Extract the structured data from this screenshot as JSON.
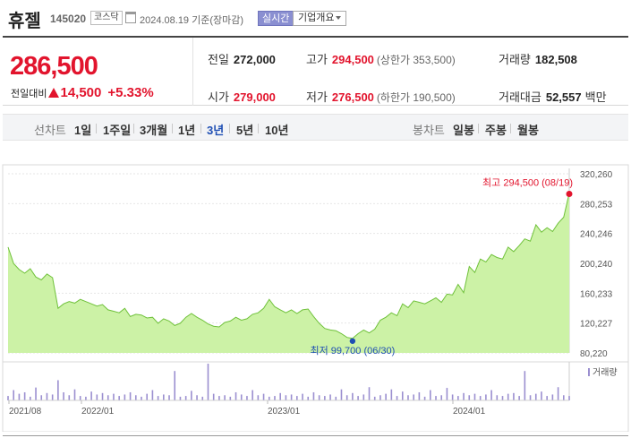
{
  "header": {
    "name": "휴젤",
    "code": "145020",
    "market": "코스닥",
    "date": "2024.08.19",
    "date_note": "기준(장마감)",
    "live_label": "실시간",
    "info_label": "기업개요"
  },
  "quote": {
    "current": "286,500",
    "change_label": "전일대비",
    "change_value": "14,500",
    "change_pct": "+5.33%",
    "prev_label": "전일",
    "prev_value": "272,000",
    "high_label": "고가",
    "high_value": "294,500",
    "upper_limit": "(상한가 353,500)",
    "volume_label": "거래량",
    "volume_value": "182,508",
    "open_label": "시가",
    "open_value": "279,000",
    "low_label": "저가",
    "low_value": "276,500",
    "lower_limit": "(하한가 190,500)",
    "amount_label": "거래대금",
    "amount_value": "52,557",
    "amount_unit": "백만"
  },
  "tabs": {
    "line_label": "선차트",
    "periods": [
      "1일",
      "1주일",
      "3개월",
      "1년",
      "3년",
      "5년",
      "10년"
    ],
    "selected": "3년",
    "candle_label": "봉차트",
    "candles": [
      "일봉",
      "주봉",
      "월봉"
    ]
  },
  "colors": {
    "up": "#e2142d",
    "selected_tab": "#1f4fb4",
    "area_fill": "#ccf2a6",
    "line": "#6fc13a",
    "volume_bar": "#9b8fd0"
  },
  "chart_data": {
    "type": "area",
    "x_labels": [
      "2021/08",
      "2022/01",
      "2023/01",
      "2024/01"
    ],
    "y_ticks": [
      "320,260",
      "280,253",
      "240,246",
      "200,240",
      "160,233",
      "120,227",
      "80,220"
    ],
    "ylim": [
      80220,
      320260
    ],
    "series": [
      {
        "values": [
          222000,
          200000,
          192000,
          187000,
          193000,
          182000,
          178000,
          186000,
          181000,
          140000,
          146000,
          149000,
          147000,
          152000,
          149000,
          146000,
          143000,
          145000,
          138000,
          136000,
          134000,
          140000,
          129000,
          132000,
          131000,
          127000,
          128000,
          120000,
          126000,
          123000,
          117000,
          120000,
          128000,
          133000,
          128000,
          124000,
          119000,
          116000,
          115000,
          121000,
          123000,
          128000,
          124000,
          126000,
          132000,
          134000,
          140000,
          152000,
          142000,
          138000,
          134000,
          138000,
          133000,
          138000,
          139000,
          129000,
          120000,
          113000,
          111000,
          110000,
          106000,
          101000,
          99700,
          106000,
          111000,
          107000,
          112000,
          124000,
          128000,
          134000,
          130000,
          146000,
          141000,
          150000,
          148000,
          146000,
          150000,
          154000,
          148000,
          159000,
          158000,
          172000,
          161000,
          196000,
          188000,
          206000,
          202000,
          212000,
          208000,
          206000,
          222000,
          216000,
          224000,
          233000,
          230000,
          252000,
          242000,
          248000,
          243000,
          254000,
          262000,
          294500
        ]
      }
    ],
    "high": {
      "label": "최고",
      "value": "294,500",
      "date": "(08/19)"
    },
    "low": {
      "label": "최저",
      "value": "99,700",
      "date": "(06/30)"
    },
    "volume_label": "거래량",
    "volume": [
      12,
      28,
      18,
      22,
      10,
      35,
      14,
      20,
      16,
      55,
      22,
      14,
      30,
      12,
      10,
      24,
      16,
      20,
      14,
      18,
      12,
      16,
      22,
      14,
      10,
      18,
      28,
      12,
      16,
      14,
      80,
      10,
      12,
      26,
      14,
      10,
      100,
      18,
      12,
      14,
      10,
      22,
      16,
      12,
      28,
      14,
      18,
      10,
      12,
      20,
      14,
      16,
      12,
      18,
      10,
      22,
      14,
      12,
      16,
      10,
      30,
      14,
      20,
      12,
      16,
      36,
      10,
      14,
      18,
      30,
      12,
      24,
      14,
      16,
      22,
      10,
      28,
      12,
      14,
      34,
      16,
      12,
      20,
      14,
      18,
      12,
      16,
      28,
      14,
      12,
      18,
      20,
      12,
      80,
      14,
      18,
      24,
      12,
      16,
      36,
      14,
      12
    ]
  }
}
